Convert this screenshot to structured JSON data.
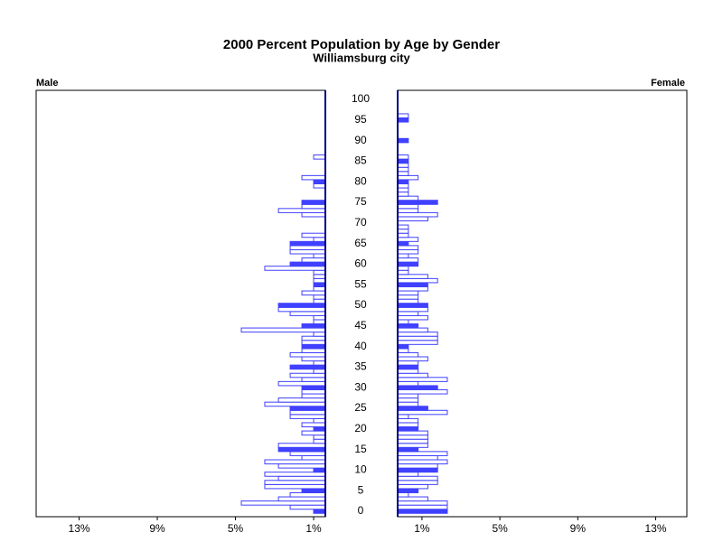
{
  "chart_data": {
    "type": "pyramid",
    "title": "2000 Percent Population by Age by Gender",
    "subtitle": "Williamsburg city",
    "categories": [
      0,
      null,
      null,
      null,
      null,
      5,
      null,
      null,
      null,
      null,
      10,
      null,
      null,
      null,
      null,
      15,
      null,
      null,
      null,
      null,
      20,
      null,
      null,
      null,
      null,
      25,
      null,
      null,
      null,
      null,
      30,
      null,
      null,
      null,
      null,
      35,
      null,
      null,
      null,
      null,
      40,
      null,
      null,
      null,
      null,
      45,
      null,
      null,
      null,
      null,
      50,
      null,
      null,
      null,
      null,
      55,
      null,
      null,
      null,
      null,
      60,
      null,
      null,
      null,
      null,
      65,
      null,
      null,
      null,
      null,
      70,
      null,
      null,
      null,
      null,
      75,
      null,
      null,
      null,
      null,
      80,
      null,
      null,
      null,
      null,
      85,
      null,
      null,
      null,
      null,
      90,
      null,
      null,
      null,
      null,
      95,
      null,
      null,
      null,
      null,
      100
    ],
    "color": "#4040ff",
    "series": [
      {
        "name": "Male",
        "xlim": [
          15.2,
          0.4
        ],
        "xticks": [
          {
            "value": 13,
            "label": "13%"
          },
          {
            "value": 9,
            "label": "9%"
          },
          {
            "value": 5,
            "label": "5%"
          },
          {
            "value": 1,
            "label": "1%"
          }
        ],
        "values": [
          1.0,
          2.2,
          4.7,
          2.8,
          2.2,
          1.6,
          3.5,
          3.5,
          2.8,
          3.5,
          1.0,
          2.8,
          3.5,
          1.6,
          2.2,
          2.8,
          2.8,
          1.0,
          1.0,
          1.6,
          1.0,
          1.6,
          1.0,
          2.2,
          2.2,
          2.2,
          3.5,
          2.8,
          1.6,
          1.6,
          1.6,
          2.8,
          1.6,
          2.2,
          1.0,
          2.2,
          1.0,
          1.6,
          2.2,
          1.6,
          1.6,
          1.6,
          1.6,
          1.0,
          4.7,
          1.6,
          1.0,
          1.0,
          2.2,
          2.8,
          2.8,
          1.0,
          1.0,
          1.6,
          1.0,
          1.0,
          1.0,
          1.0,
          1.0,
          3.5,
          2.2,
          1.6,
          1.0,
          2.2,
          2.2,
          2.2,
          1.0,
          1.6,
          null,
          null,
          null,
          null,
          1.6,
          2.8,
          1.6,
          1.6,
          null,
          null,
          null,
          1.0,
          1.0,
          1.6,
          null,
          null,
          null,
          null,
          1.0,
          null,
          null,
          null,
          null,
          null,
          null,
          null,
          null,
          null,
          null,
          null,
          null,
          null,
          null
        ]
      },
      {
        "name": "Female",
        "xlim": [
          -0.25,
          14.6
        ],
        "xticks": [
          {
            "value": 1,
            "label": "1%"
          },
          {
            "value": 5,
            "label": "5%"
          },
          {
            "value": 9,
            "label": "9%"
          },
          {
            "value": 13,
            "label": "13%"
          }
        ],
        "values": [
          2.3,
          2.3,
          2.3,
          1.3,
          0.3,
          0.8,
          1.3,
          1.8,
          1.8,
          0.8,
          1.8,
          1.8,
          2.3,
          1.8,
          2.3,
          0.8,
          1.3,
          1.3,
          1.3,
          1.3,
          0.8,
          0.8,
          0.8,
          0.3,
          2.3,
          1.3,
          0.8,
          0.8,
          0.8,
          2.3,
          1.8,
          0.8,
          2.3,
          1.3,
          0.8,
          0.8,
          0.8,
          1.3,
          0.8,
          0.3,
          0.3,
          1.8,
          1.8,
          1.8,
          1.3,
          0.8,
          0.3,
          1.3,
          0.8,
          1.3,
          1.3,
          0.8,
          0.8,
          0.8,
          1.3,
          1.3,
          1.8,
          1.3,
          0.3,
          0.3,
          0.8,
          0.8,
          0.3,
          0.8,
          0.8,
          0.3,
          0.8,
          0.3,
          0.3,
          0.3,
          null,
          1.3,
          1.8,
          0.8,
          0.8,
          1.8,
          0.8,
          0.3,
          0.3,
          0.3,
          0.3,
          0.8,
          0.3,
          0.3,
          0.3,
          0.3,
          0.3,
          null,
          null,
          null,
          0.3,
          null,
          null,
          null,
          null,
          0.3,
          0.3,
          null,
          null,
          null,
          null
        ]
      }
    ]
  }
}
